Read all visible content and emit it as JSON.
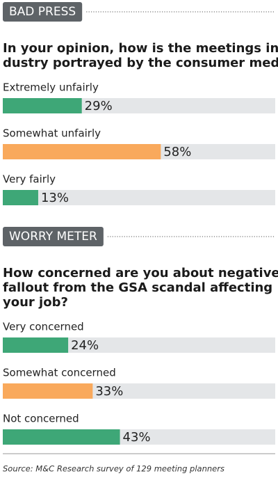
{
  "chart_data": [
    {
      "type": "bar",
      "orientation": "horizontal",
      "section": "BAD PRESS",
      "title": [
        "In your opinion, how is the meetings in-",
        "dustry portrayed by the consumer media?"
      ],
      "categories": [
        "Extremely unfairly",
        "Somewhat unfairly",
        "Very fairly"
      ],
      "values": [
        29,
        58,
        13
      ],
      "value_labels": [
        "29%",
        "58%",
        "13%"
      ],
      "colors": [
        "#3ea777",
        "#f9a95c",
        "#3ea777"
      ],
      "track_color": "#e4e6e8",
      "xlim": [
        0,
        100
      ]
    },
    {
      "type": "bar",
      "orientation": "horizontal",
      "section": "WORRY METER",
      "title": [
        "How concerned are you about negative",
        "fallout from the GSA scandal affecting",
        "your job?"
      ],
      "categories": [
        "Very concerned",
        "Somewhat concerned",
        "Not concerned"
      ],
      "values": [
        24,
        33,
        43
      ],
      "value_labels": [
        "24%",
        "33%",
        "43%"
      ],
      "colors": [
        "#3ea777",
        "#f9a95c",
        "#3ea777"
      ],
      "track_color": "#e4e6e8",
      "xlim": [
        0,
        100
      ]
    }
  ],
  "source": "Source: M&C Research survey of 129 meeting planners"
}
